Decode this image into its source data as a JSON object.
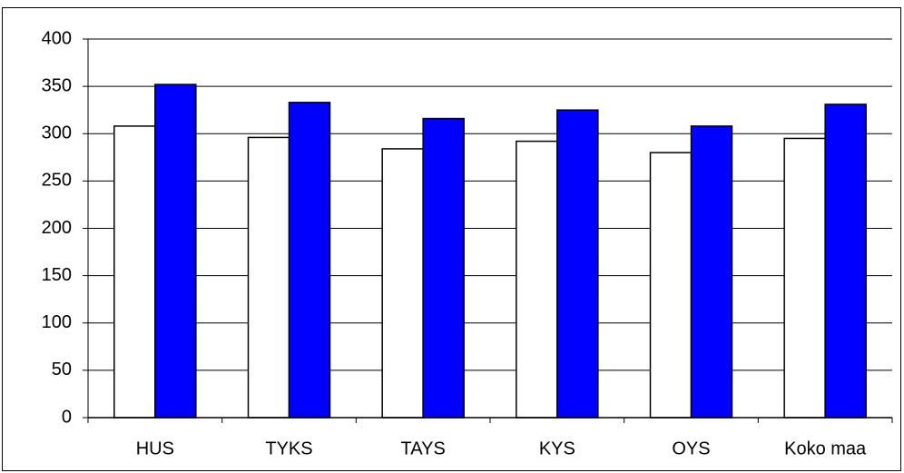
{
  "chart_data": {
    "type": "bar",
    "categories": [
      "HUS",
      "TYKS",
      "TAYS",
      "KYS",
      "OYS",
      "Koko maa"
    ],
    "series": [
      {
        "color": "#ffffff",
        "values": [
          308,
          296,
          284,
          292,
          280,
          295
        ]
      },
      {
        "color": "#0000ff",
        "values": [
          352,
          333,
          316,
          325,
          308,
          331
        ]
      }
    ],
    "ylim": [
      0,
      400
    ],
    "yticks": [
      0,
      50,
      100,
      150,
      200,
      250,
      300,
      350,
      400
    ],
    "grid": true
  }
}
